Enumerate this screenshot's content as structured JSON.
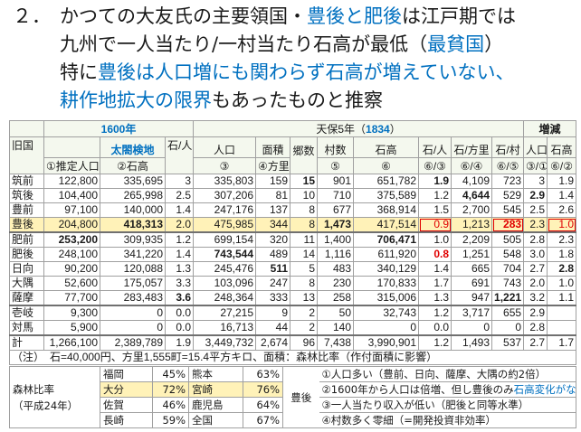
{
  "header": {
    "number": "２．",
    "lines": [
      [
        {
          "text": "かつての大友氏の主要領国・"
        },
        {
          "text": "豊後と肥後",
          "color": "#0070c0"
        },
        {
          "text": "は江戸期では"
        }
      ],
      [
        {
          "text": "九州で一人当たり/一村当たり石高が最低（"
        },
        {
          "text": "最貧国",
          "color": "#0070c0"
        },
        {
          "text": "）"
        }
      ],
      [
        {
          "text": "特に"
        },
        {
          "text": "豊後は人口増にも関わらず石高が増えていない、",
          "color": "#0070c0"
        }
      ],
      [
        {
          "text": "耕作地拡大の限界",
          "color": "#0070c0"
        },
        {
          "text": "もあったものと推察"
        }
      ]
    ]
  },
  "table": {
    "head": {
      "y1600": "1600年",
      "tenpo": [
        "天保5年（",
        "1834",
        "）"
      ],
      "change": "増減",
      "row2": [
        "旧国",
        "太閤検地",
        "石/人",
        "人口",
        "面積",
        "郷数",
        "村数",
        "石高",
        "石/人",
        "石/方里",
        "石/村",
        "人口",
        "石高"
      ],
      "row3": [
        "①推定人口",
        "②石高",
        "③",
        "④方里",
        "⑤",
        "⑥",
        "⑥/③",
        "⑥/④",
        "⑥/⑤",
        "③/①",
        "⑥/②"
      ]
    },
    "rows": [
      [
        "筑前",
        "122,800",
        "335,695",
        "3",
        "335,803",
        "159",
        "15",
        "901",
        "651,782",
        "1.9",
        "4,109",
        "723",
        "3",
        "1.9"
      ],
      [
        "筑後",
        "104,400",
        "265,998",
        "2.5",
        "307,206",
        "81",
        "10",
        "710",
        "375,589",
        "1.2",
        "4,644",
        "529",
        "2.9",
        "1.4"
      ],
      [
        "豊前",
        "97,100",
        "140,000",
        "1.4",
        "247,176",
        "137",
        "8",
        "677",
        "368,914",
        "1.5",
        "2,700",
        "545",
        "2.5",
        "2.6"
      ],
      [
        "豊後",
        "204,800",
        "418,313",
        "2.0",
        "475,985",
        "344",
        "8",
        "1,473",
        "417,514",
        "0.9",
        "1,213",
        "283",
        "2.3",
        "1.0"
      ],
      [
        "肥前",
        "253,200",
        "309,935",
        "1.2",
        "699,154",
        "320",
        "11",
        "1,400",
        "706,471",
        "1.0",
        "2,209",
        "505",
        "2.8",
        "2.3"
      ],
      [
        "肥後",
        "248,100",
        "341,220",
        "1.4",
        "743,544",
        "489",
        "14",
        "1,116",
        "611,920",
        "0.8",
        "1,251",
        "548",
        "3.0",
        "1.8"
      ],
      [
        "日向",
        "90,200",
        "120,088",
        "1.3",
        "245,476",
        "511",
        "5",
        "483",
        "340,129",
        "1.4",
        "665",
        "704",
        "2.7",
        "2.8"
      ],
      [
        "大隅",
        "52,600",
        "175,057",
        "3.3",
        "103,096",
        "247",
        "8",
        "230",
        "170,833",
        "1.7",
        "691",
        "743",
        "2.0",
        "1.0"
      ],
      [
        "薩摩",
        "77,700",
        "283,483",
        "3.6",
        "248,364",
        "333",
        "13",
        "258",
        "315,006",
        "1.3",
        "947",
        "1,221",
        "3.2",
        "1.1"
      ],
      [
        "壱岐",
        "9,300",
        "0",
        "0.0",
        "27,215",
        "9",
        "2",
        "50",
        "32,743",
        "1.2",
        "3,717",
        "655",
        "2.9",
        null
      ],
      [
        "対馬",
        "5,900",
        "0",
        "0.0",
        "16,713",
        "44",
        "2",
        "140",
        "0",
        "0.0",
        "0",
        "0",
        "2.8",
        null
      ],
      [
        "計",
        "1,266,100",
        "2,389,789",
        "1.9",
        "3,449,732",
        "2,674",
        "96",
        "7,438",
        "3,990,901",
        "1.2",
        "1,493",
        "537",
        "2.7",
        "1.7"
      ]
    ],
    "note": "（注）　石=40,000円、方里1,555町=15.4平方キロ、面積：森林比率（作付面積に影響）"
  },
  "forest": {
    "label": "森林比率",
    "sub": "（平成24年）",
    "rows": [
      [
        "福岡",
        "45%",
        "熊本",
        "63%"
      ],
      [
        "大分",
        "72%",
        "宮崎",
        "76%"
      ],
      [
        "佐賀",
        "46%",
        "鹿児島",
        "64%"
      ],
      [
        "長崎",
        "59%",
        "全国",
        "67%"
      ]
    ]
  },
  "bungo": {
    "label": "豊後",
    "items": [
      [
        {
          "text": "①人口多い（豊前、日向、薩摩、大隅の約2倍）"
        }
      ],
      [
        {
          "text": "②1600年から人口は倍増、但し豊後のみ"
        },
        {
          "text": "石高変化がない",
          "color": "#0070c0"
        }
      ],
      [
        {
          "text": "③一人当たり収入が低い（肥後と同等水準）"
        }
      ],
      [
        {
          "text": "④村数多く零細（=開発投資非効率）"
        }
      ]
    ]
  }
}
